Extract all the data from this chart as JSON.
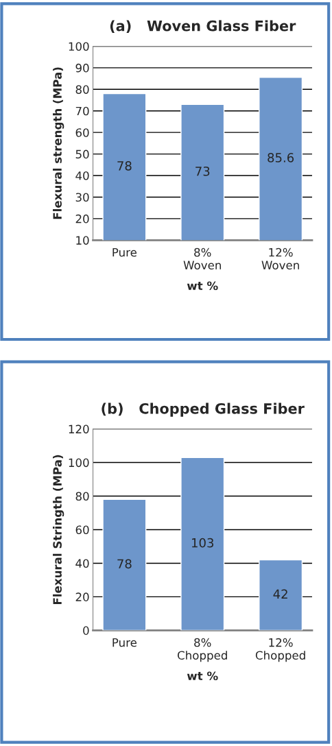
{
  "chart_data": [
    {
      "type": "bar",
      "title": "(a)   Woven Glass Fiber",
      "xlabel": "wt %",
      "ylabel": "Flexural strength (MPa)",
      "categories": [
        "Pure",
        "8%\nWoven",
        "12%\nWoven"
      ],
      "values": [
        78,
        73,
        85.6
      ],
      "color": "#6d96cb",
      "ylim": [
        10,
        100
      ],
      "yticks": [
        10,
        20,
        30,
        40,
        50,
        60,
        70,
        80,
        90,
        100
      ],
      "grid": "y",
      "data_labels": true
    },
    {
      "type": "bar",
      "title": "(b)   Chopped Glass Fiber",
      "xlabel": "wt %",
      "ylabel": "Flexural Stringth (MPa)",
      "categories": [
        "Pure",
        "8%\nChopped",
        "12%\nChopped"
      ],
      "values": [
        78,
        103,
        42
      ],
      "color": "#6d96cb",
      "ylim": [
        0,
        120
      ],
      "yticks": [
        0,
        20,
        40,
        60,
        80,
        100,
        120
      ],
      "grid": "y",
      "data_labels": true
    }
  ]
}
